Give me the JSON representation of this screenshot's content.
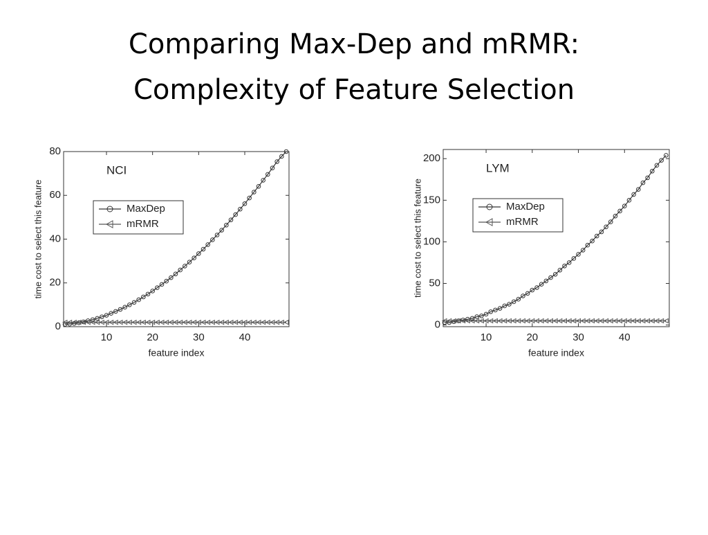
{
  "title": [
    "Comparing Max-Dep and mRMR:",
    "Complexity of Feature Selection"
  ],
  "chart_data": [
    {
      "type": "line",
      "annotation": "NCI",
      "xlabel": "feature index",
      "ylabel": "time cost to select this feature",
      "xlim": [
        0.7,
        49.6
      ],
      "ylim": [
        0,
        80
      ],
      "xticks": [
        10,
        20,
        30,
        40
      ],
      "yticks": [
        0,
        20,
        40,
        60,
        80
      ],
      "legend": "upper left",
      "x": [
        1,
        2,
        3,
        4,
        5,
        6,
        7,
        8,
        9,
        10,
        11,
        12,
        13,
        14,
        15,
        16,
        17,
        18,
        19,
        20,
        21,
        22,
        23,
        24,
        25,
        26,
        27,
        28,
        29,
        30,
        31,
        32,
        33,
        34,
        35,
        36,
        37,
        38,
        39,
        40,
        41,
        42,
        43,
        44,
        45,
        46,
        47,
        48,
        49
      ],
      "series": [
        {
          "name": "MaxDep",
          "color": "#333333",
          "marker": "circle",
          "values": [
            1.1,
            1.2,
            1.5,
            1.8,
            2.2,
            2.7,
            3.2,
            3.8,
            4.5,
            5.2,
            6.1,
            7.0,
            7.9,
            8.9,
            10.0,
            11.1,
            12.3,
            13.6,
            14.9,
            16.3,
            17.8,
            19.3,
            20.8,
            22.4,
            24.1,
            25.9,
            27.7,
            29.5,
            31.4,
            33.4,
            35.4,
            37.5,
            39.7,
            41.9,
            44.1,
            46.4,
            48.8,
            51.2,
            53.7,
            56.2,
            58.8,
            61.5,
            64.1,
            66.9,
            69.6,
            72.5,
            75.4,
            77.8,
            80
          ]
        },
        {
          "name": "mRMR",
          "color": "#555555",
          "marker": "triangle-left",
          "values": [
            2,
            2,
            2,
            2,
            2,
            2,
            2,
            2,
            2,
            2,
            2,
            2,
            2,
            2,
            2,
            2,
            2,
            2,
            2,
            2,
            2,
            2,
            2,
            2,
            2,
            2,
            2,
            2,
            2,
            2,
            2,
            2,
            2,
            2,
            2,
            2,
            2,
            2,
            2,
            2,
            2,
            2,
            2,
            2,
            2,
            2,
            2,
            2,
            2
          ]
        }
      ]
    },
    {
      "type": "line",
      "annotation": "LYM",
      "xlabel": "feature index",
      "ylabel": "time cost to select this feature",
      "xlim": [
        0.7,
        49.7
      ],
      "ylim": [
        -2,
        211
      ],
      "xticks": [
        10,
        20,
        30,
        40
      ],
      "yticks": [
        0,
        50,
        100,
        150,
        200
      ],
      "legend": "upper left",
      "x": [
        1,
        2,
        3,
        4,
        5,
        6,
        7,
        8,
        9,
        10,
        11,
        12,
        13,
        14,
        15,
        16,
        17,
        18,
        19,
        20,
        21,
        22,
        23,
        24,
        25,
        26,
        27,
        28,
        29,
        30,
        31,
        32,
        33,
        34,
        35,
        36,
        37,
        38,
        39,
        40,
        41,
        42,
        43,
        44,
        45,
        46,
        47,
        48,
        49
      ],
      "series": [
        {
          "name": "MaxDep",
          "color": "#333333",
          "marker": "circle",
          "values": [
            3,
            3,
            4,
            5,
            6,
            7,
            8,
            10,
            11,
            13,
            16,
            18,
            20,
            23,
            25,
            28,
            31,
            35,
            38,
            42,
            45,
            49,
            53,
            57,
            61,
            66,
            71,
            75,
            80,
            85,
            90,
            96,
            101,
            107,
            112,
            118,
            124,
            131,
            137,
            143,
            150,
            157,
            163,
            171,
            177,
            185,
            192,
            198,
            204
          ]
        },
        {
          "name": "mRMR",
          "color": "#555555",
          "marker": "triangle-left",
          "values": [
            5,
            5,
            5,
            5,
            5,
            5,
            5,
            5,
            5,
            5,
            5,
            5,
            5,
            5,
            5,
            5,
            5,
            5,
            5,
            5,
            5,
            5,
            5,
            5,
            5,
            5,
            5,
            5,
            5,
            5,
            5,
            5,
            5,
            5,
            5,
            5,
            5,
            5,
            5,
            5,
            5,
            5,
            5,
            5,
            5,
            5,
            5,
            5,
            5
          ]
        }
      ]
    }
  ]
}
